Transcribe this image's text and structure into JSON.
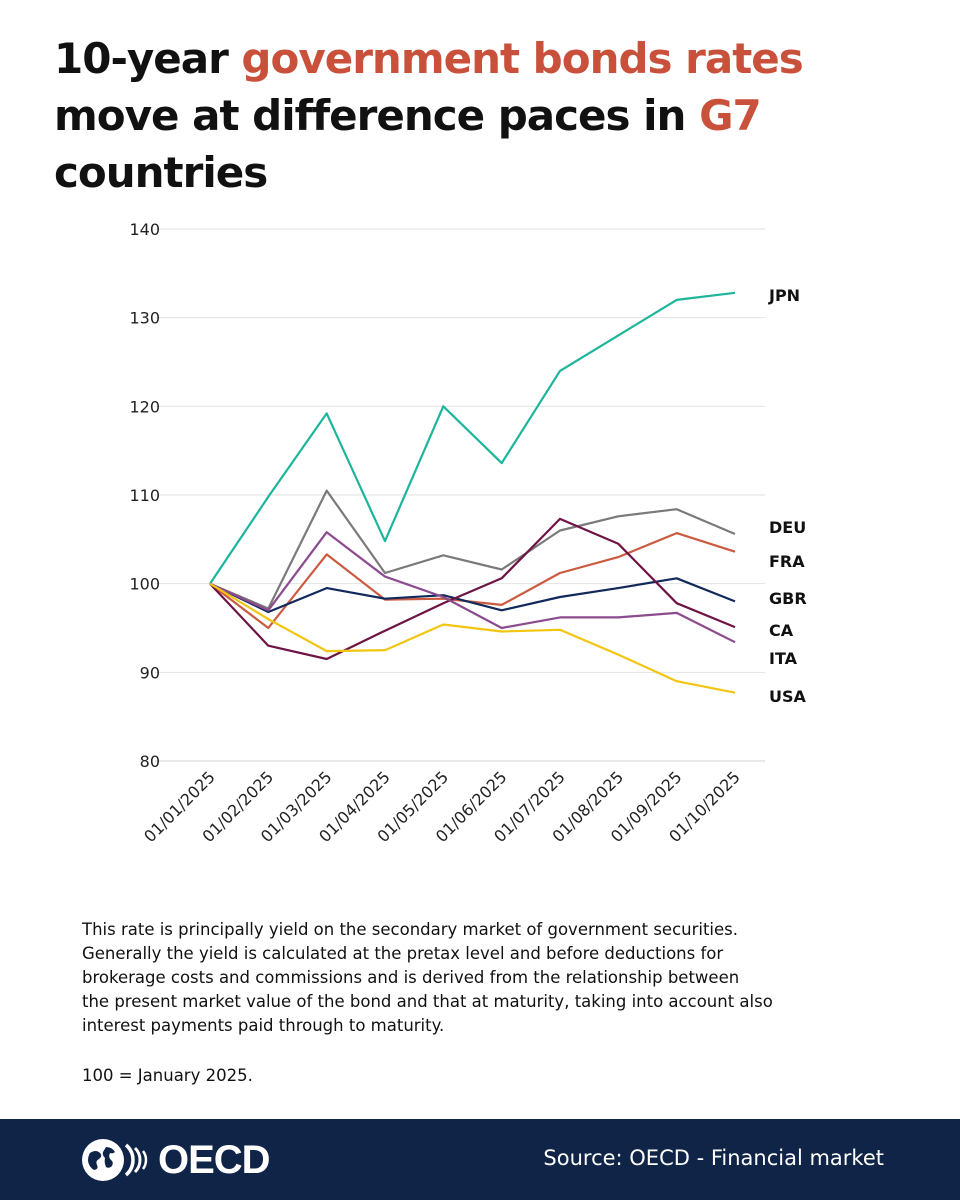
{
  "title": {
    "part1": "10-year ",
    "highlight1": "government bonds rates",
    "part2": " move at difference paces in ",
    "highlight2": "G7",
    "part3": " countries"
  },
  "colors": {
    "highlight": "#c9503a",
    "footer_bg": "#0f2447"
  },
  "chart_data": {
    "type": "line",
    "title": "10-year government bonds rates move at difference paces in G7 countries",
    "xlabel": "",
    "ylabel": "",
    "ylim": [
      80,
      140
    ],
    "yticks": [
      80,
      90,
      100,
      110,
      120,
      130,
      140
    ],
    "grid": true,
    "categories": [
      "01/01/2025",
      "01/02/2025",
      "01/03/2025",
      "01/04/2025",
      "01/05/2025",
      "01/06/2025",
      "01/07/2025",
      "01/08/2025",
      "01/09/2025",
      "01/10/2025"
    ],
    "series": [
      {
        "name": "JPN",
        "color": "#1db59b",
        "values": [
          100,
          109.8,
          119.2,
          104.8,
          120.0,
          113.6,
          124.0,
          128.0,
          132.0,
          132.8
        ]
      },
      {
        "name": "DEU",
        "color": "#7a7a7a",
        "values": [
          100,
          97.2,
          110.5,
          101.2,
          103.2,
          101.6,
          106.0,
          107.6,
          108.4,
          105.6
        ]
      },
      {
        "name": "FRA",
        "color": "#cc5a40",
        "values": [
          100,
          95.0,
          103.3,
          98.2,
          98.3,
          97.6,
          101.2,
          103.0,
          105.7,
          103.6
        ]
      },
      {
        "name": "GBR",
        "color": "#12295b",
        "values": [
          100,
          96.8,
          99.5,
          98.3,
          98.7,
          97.0,
          98.5,
          99.5,
          100.6,
          98.0
        ]
      },
      {
        "name": "CA",
        "color": "#6e1445",
        "values": [
          100,
          93.0,
          91.5,
          94.7,
          97.8,
          100.6,
          107.3,
          104.5,
          97.8,
          95.1
        ]
      },
      {
        "name": "ITA",
        "color": "#8b4b8e",
        "values": [
          100,
          97.0,
          105.8,
          100.8,
          98.5,
          95.0,
          96.2,
          96.2,
          96.7,
          93.4
        ]
      },
      {
        "name": "USA",
        "color": "#f2c511",
        "values": [
          100,
          96.0,
          92.4,
          92.5,
          95.4,
          94.6,
          94.8,
          92.0,
          89.0,
          87.7
        ]
      }
    ]
  },
  "notes": {
    "line1": "This rate is principally yield on the secondary market of government securities.",
    "line2": "Generally the yield is calculated at the pretax level and before deductions for",
    "line3": "brokerage costs and commissions and is derived from the relationship between",
    "line4": "the present market value of the bond and that at maturity, taking into account also",
    "line5": "interest payments paid through to maturity.",
    "base": "100 = January 2025."
  },
  "footer": {
    "logo_text": "OECD",
    "source": "Source: OECD - Financial market"
  }
}
